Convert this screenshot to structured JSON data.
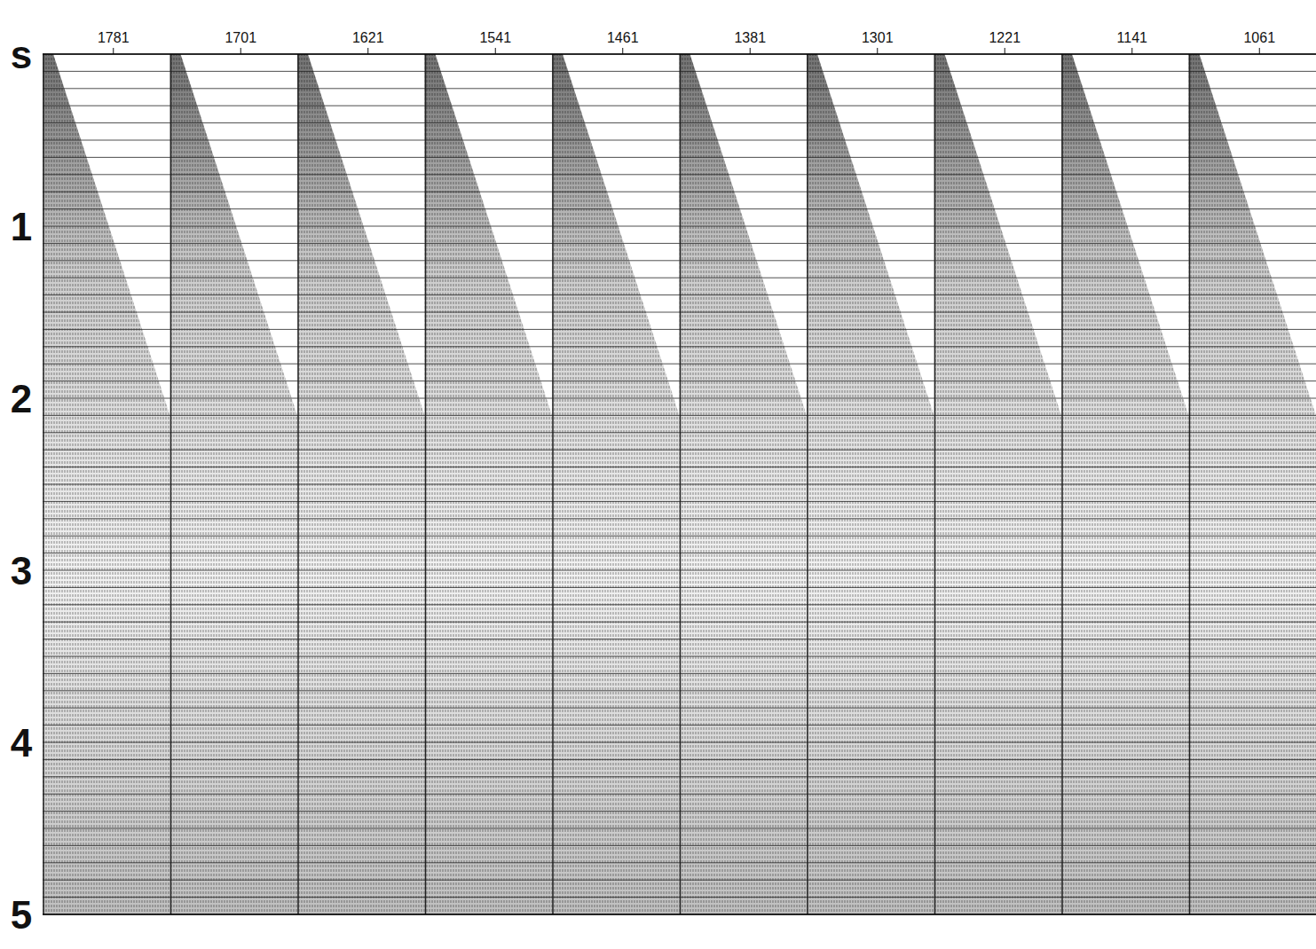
{
  "chart_data": {
    "type": "seismic",
    "categories": [
      "1781",
      "1701",
      "1621",
      "1541",
      "1461",
      "1381",
      "1301",
      "1221",
      "1141",
      "1061"
    ],
    "ylim": [
      0,
      5
    ],
    "yticks": [
      {
        "value": 0,
        "label": "s"
      },
      1,
      2,
      3,
      4,
      5
    ],
    "grid": true
  }
}
